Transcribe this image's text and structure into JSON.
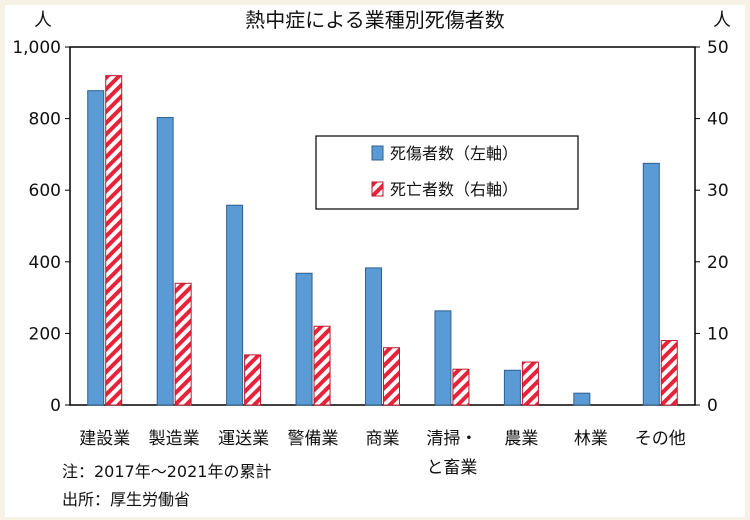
{
  "chart_data": {
    "type": "bar",
    "title": "熱中症による業種別死傷者数",
    "categories": [
      [
        "建設業"
      ],
      [
        "製造業"
      ],
      [
        "運送業"
      ],
      [
        "警備業"
      ],
      [
        "商業"
      ],
      [
        "清掃・",
        "と畜業"
      ],
      [
        "農業"
      ],
      [
        "林業"
      ],
      [
        "その他"
      ]
    ],
    "series": [
      {
        "name": "死傷者数（左軸）",
        "axis": "left",
        "color": "#5b9bd5",
        "pattern": "solid",
        "values": [
          878,
          803,
          558,
          368,
          383,
          263,
          97,
          33,
          675
        ]
      },
      {
        "name": "死亡者数（右軸）",
        "axis": "right",
        "color": "#e8223a",
        "pattern": "diagonal-stripes",
        "values": [
          46,
          17,
          7,
          11,
          8,
          5,
          6,
          0,
          9
        ]
      }
    ],
    "y_left": {
      "unit": "人",
      "range": [
        0,
        1000
      ],
      "ticks": [
        "0",
        "200",
        "400",
        "600",
        "800",
        "1,000"
      ]
    },
    "y_right": {
      "unit": "人",
      "range": [
        0,
        50
      ],
      "ticks": [
        "0",
        "10",
        "20",
        "30",
        "40",
        "50"
      ]
    },
    "grid": false,
    "legend_position": "upper-right inside plot"
  },
  "notes": {
    "note": "注：2017年～2021年の累計",
    "source": "出所：厚生労働省"
  }
}
